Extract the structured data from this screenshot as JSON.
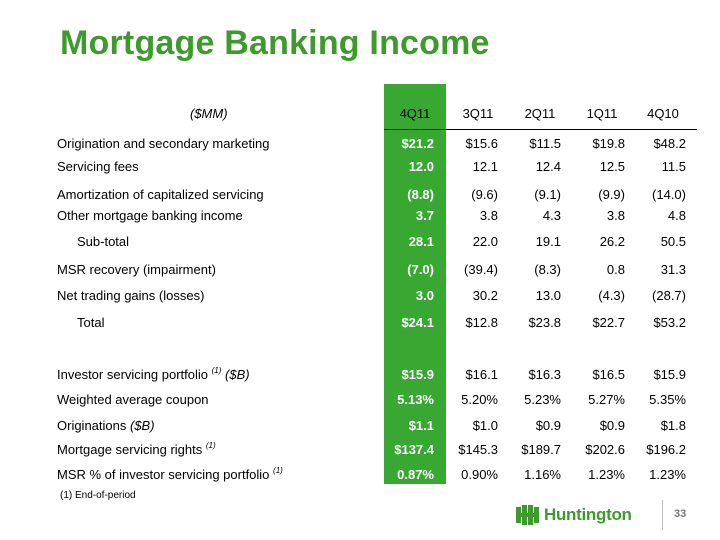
{
  "title": "Mortgage Banking Income",
  "header": {
    "label": "($MM)",
    "cols": [
      "4Q11",
      "3Q11",
      "2Q11",
      "1Q11",
      "4Q10"
    ]
  },
  "rows": [
    {
      "label": "Origination and secondary marketing",
      "sup": "",
      "vals": [
        "$21.2",
        "$15.6",
        "$11.5",
        "$19.8",
        "$48.2"
      ]
    },
    {
      "label": "Servicing fees",
      "sup": "",
      "vals": [
        "12.0",
        "12.1",
        "12.4",
        "12.5",
        "11.5"
      ]
    },
    {
      "label": "Amortization of capitalized servicing",
      "sup": "",
      "vals": [
        "(8.8)",
        "(9.6)",
        "(9.1)",
        "(9.9)",
        "(14.0)"
      ]
    },
    {
      "label": "Other mortgage banking income",
      "sup": "",
      "vals": [
        "3.7",
        "3.8",
        "4.3",
        "3.8",
        "4.8"
      ]
    },
    {
      "label": "Sub-total",
      "sup": "",
      "vals": [
        "28.1",
        "22.0",
        "19.1",
        "26.2",
        "50.5"
      ]
    },
    {
      "label": "MSR recovery (impairment)",
      "sup": "",
      "vals": [
        "(7.0)",
        "(39.4)",
        "(8.3)",
        "0.8",
        "31.3"
      ]
    },
    {
      "label": "Net trading gains (losses)",
      "sup": "",
      "vals": [
        "3.0",
        "30.2",
        "13.0",
        "(4.3)",
        "(28.7)"
      ]
    },
    {
      "label": "Total",
      "sup": "",
      "vals": [
        "$24.1",
        "$12.8",
        "$23.8",
        "$22.7",
        "$53.2"
      ]
    },
    {
      "label": "Investor servicing portfolio ",
      "sup": "(1)",
      "unit": " ($B)",
      "vals": [
        "$15.9",
        "$16.1",
        "$16.3",
        "$16.5",
        "$15.9"
      ]
    },
    {
      "label": "Weighted average coupon",
      "sup": "",
      "vals": [
        "5.13%",
        "5.20%",
        "5.23%",
        "5.27%",
        "5.35%"
      ]
    },
    {
      "label": "Originations ",
      "sup": "",
      "unit": "($B)",
      "vals": [
        "$1.1",
        "$1.0",
        "$0.9",
        "$0.9",
        "$1.8"
      ]
    },
    {
      "label": "Mortgage servicing rights ",
      "sup": "(1)",
      "vals": [
        "$137.4",
        "$145.3",
        "$189.7",
        "$202.6",
        "$196.2"
      ]
    },
    {
      "label": "MSR % of investor servicing portfolio ",
      "sup": "(1)",
      "vals": [
        "0.87%",
        "0.90%",
        "1.16%",
        "1.23%",
        "1.23%"
      ]
    }
  ],
  "footnote": "(1)   End-of-period",
  "logo_text": "Huntington",
  "page_number": "33",
  "colors": {
    "title": "#3f9a2e",
    "highlight": "#38a832"
  }
}
